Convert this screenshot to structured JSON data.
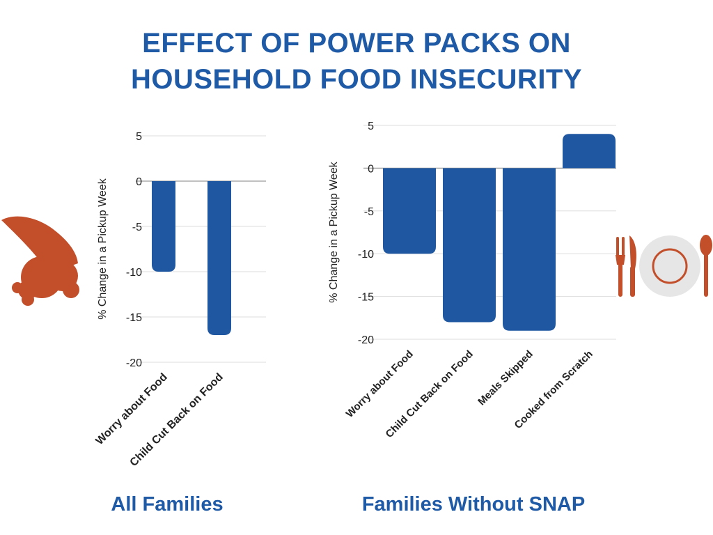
{
  "title_lines": [
    "EFFECT OF POWER PACKS ON",
    "HOUSEHOLD FOOD INSECURITY"
  ],
  "colors": {
    "title": "#1f5aa6",
    "bar": "#1f57a0",
    "grid": "#dddddd",
    "cornucopia": "#c24e2a",
    "utensils": "#c24e2a",
    "plate": "#e6e6e6"
  },
  "icons": [
    "cornucopia-icon",
    "place-setting-icon"
  ],
  "chart_data": [
    {
      "type": "bar",
      "title": "All Families",
      "ylabel": "% Change in a Pickup Week",
      "categories": [
        "Worry about Food",
        "Child Cut Back on Food"
      ],
      "values": [
        -10,
        -17
      ],
      "ylim": [
        -20,
        5
      ],
      "yticks": [
        5,
        0,
        -5,
        -10,
        -15,
        -20
      ],
      "grid": true,
      "legend": "none"
    },
    {
      "type": "bar",
      "title": "Families Without SNAP",
      "ylabel": "% Change in a Pickup Week",
      "categories": [
        "Worry about Food",
        "Child Cut Back on Food",
        "Meals Skipped",
        "Cooked from Scratch"
      ],
      "values": [
        -10,
        -18,
        -19,
        4
      ],
      "ylim": [
        -20,
        5
      ],
      "yticks": [
        5,
        0,
        -5,
        -10,
        -15,
        -20
      ],
      "grid": true,
      "legend": "none"
    }
  ]
}
